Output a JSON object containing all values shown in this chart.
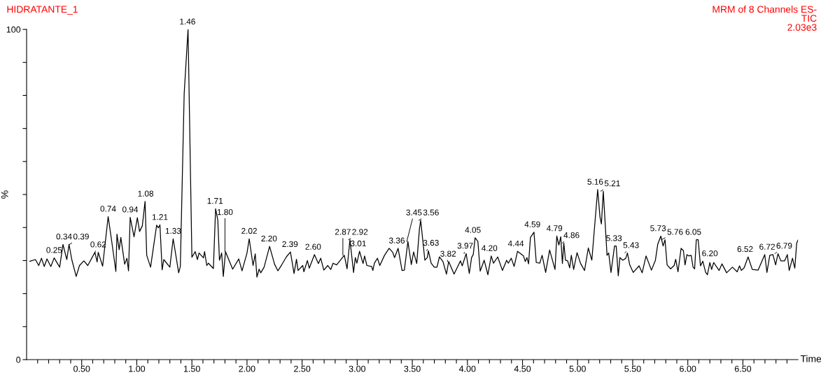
{
  "chart_data": {
    "type": "line",
    "title": "HIDRATANTE_1",
    "subtitle": "MRM of 8 Channels ES-",
    "xlabel": "Time",
    "ylabel": "%",
    "xlim": [
      0,
      7.0
    ],
    "ylim": [
      0,
      100
    ],
    "xticks": [
      {
        "value": 0.1,
        "label": null
      },
      {
        "value": 0.2,
        "label": null
      },
      {
        "value": 0.3,
        "label": null
      },
      {
        "value": 0.4,
        "label": null
      },
      {
        "value": 0.5,
        "label": "0.50"
      },
      {
        "value": 0.6,
        "label": null
      },
      {
        "value": 0.7,
        "label": null
      },
      {
        "value": 0.8,
        "label": null
      },
      {
        "value": 0.9,
        "label": null
      },
      {
        "value": 1.0,
        "label": "1.00"
      },
      {
        "value": 1.1,
        "label": null
      },
      {
        "value": 1.2,
        "label": null
      },
      {
        "value": 1.3,
        "label": null
      },
      {
        "value": 1.4,
        "label": null
      },
      {
        "value": 1.5,
        "label": "1.50"
      },
      {
        "value": 1.6,
        "label": null
      },
      {
        "value": 1.7,
        "label": null
      },
      {
        "value": 1.8,
        "label": null
      },
      {
        "value": 1.9,
        "label": null
      },
      {
        "value": 2.0,
        "label": "2.00"
      },
      {
        "value": 2.1,
        "label": null
      },
      {
        "value": 2.2,
        "label": null
      },
      {
        "value": 2.3,
        "label": null
      },
      {
        "value": 2.4,
        "label": null
      },
      {
        "value": 2.5,
        "label": "2.50"
      },
      {
        "value": 2.6,
        "label": null
      },
      {
        "value": 2.7,
        "label": null
      },
      {
        "value": 2.8,
        "label": null
      },
      {
        "value": 2.9,
        "label": null
      },
      {
        "value": 3.0,
        "label": "3.00"
      },
      {
        "value": 3.1,
        "label": null
      },
      {
        "value": 3.2,
        "label": null
      },
      {
        "value": 3.3,
        "label": null
      },
      {
        "value": 3.4,
        "label": null
      },
      {
        "value": 3.5,
        "label": "3.50"
      },
      {
        "value": 3.6,
        "label": null
      },
      {
        "value": 3.7,
        "label": null
      },
      {
        "value": 3.8,
        "label": null
      },
      {
        "value": 3.9,
        "label": null
      },
      {
        "value": 4.0,
        "label": "4.00"
      },
      {
        "value": 4.1,
        "label": null
      },
      {
        "value": 4.2,
        "label": null
      },
      {
        "value": 4.3,
        "label": null
      },
      {
        "value": 4.4,
        "label": null
      },
      {
        "value": 4.5,
        "label": "4.50"
      },
      {
        "value": 4.6,
        "label": null
      },
      {
        "value": 4.7,
        "label": null
      },
      {
        "value": 4.8,
        "label": null
      },
      {
        "value": 4.9,
        "label": null
      },
      {
        "value": 5.0,
        "label": "5.00"
      },
      {
        "value": 5.1,
        "label": null
      },
      {
        "value": 5.2,
        "label": null
      },
      {
        "value": 5.3,
        "label": null
      },
      {
        "value": 5.4,
        "label": null
      },
      {
        "value": 5.5,
        "label": "5.50"
      },
      {
        "value": 5.6,
        "label": null
      },
      {
        "value": 5.7,
        "label": null
      },
      {
        "value": 5.8,
        "label": null
      },
      {
        "value": 5.9,
        "label": null
      },
      {
        "value": 6.0,
        "label": "6.00"
      },
      {
        "value": 6.1,
        "label": null
      },
      {
        "value": 6.2,
        "label": null
      },
      {
        "value": 6.3,
        "label": null
      },
      {
        "value": 6.4,
        "label": null
      },
      {
        "value": 6.5,
        "label": "6.50"
      },
      {
        "value": 6.6,
        "label": null
      },
      {
        "value": 6.7,
        "label": null
      },
      {
        "value": 6.8,
        "label": null
      },
      {
        "value": 6.9,
        "label": null
      }
    ],
    "yticks": [
      0,
      {
        "value": 10,
        "label": null
      },
      {
        "value": 20,
        "label": null
      },
      {
        "value": 30,
        "label": null
      },
      {
        "value": 40,
        "label": null
      },
      {
        "value": 50,
        "label": null
      },
      {
        "value": 60,
        "label": null
      },
      {
        "value": 70,
        "label": null
      },
      {
        "value": 80,
        "label": null
      },
      {
        "value": 90,
        "label": null
      },
      100
    ],
    "grid": false,
    "marker": "none",
    "line_style": "solid",
    "series": [
      {
        "color": "#000000",
        "x": [
          0.03,
          0.08,
          0.11,
          0.135,
          0.16,
          0.185,
          0.22,
          0.25,
          0.3,
          0.33,
          0.365,
          0.385,
          0.41,
          0.45,
          0.48,
          0.52,
          0.555,
          0.62,
          0.64,
          0.65,
          0.69,
          0.74,
          0.77,
          0.81,
          0.82,
          0.84,
          0.855,
          0.89,
          0.91,
          0.925,
          0.94,
          0.975,
          1.005,
          1.025,
          1.05,
          1.075,
          1.09,
          1.125,
          1.18,
          1.195,
          1.21,
          1.23,
          1.245,
          1.3,
          1.33,
          1.38,
          1.395,
          1.43,
          1.465,
          1.5,
          1.53,
          1.55,
          1.565,
          1.605,
          1.615,
          1.635,
          1.65,
          1.695,
          1.715,
          1.735,
          1.75,
          1.77,
          1.785,
          1.805,
          1.87,
          1.925,
          1.955,
          2.0,
          2.02,
          2.055,
          2.075,
          2.09,
          2.11,
          2.125,
          2.155,
          2.205,
          2.25,
          2.28,
          2.315,
          2.357,
          2.394,
          2.427,
          2.449,
          2.463,
          2.506,
          2.516,
          2.548,
          2.565,
          2.612,
          2.648,
          2.669,
          2.697,
          2.733,
          2.76,
          2.781,
          2.813,
          2.883,
          2.908,
          2.934,
          2.967,
          2.983,
          2.997,
          3.021,
          3.053,
          3.067,
          3.088,
          3.131,
          3.142,
          3.156,
          3.184,
          3.205,
          3.248,
          3.29,
          3.322,
          3.339,
          3.371,
          3.407,
          3.428,
          3.46,
          3.491,
          3.512,
          3.54,
          3.565,
          3.576,
          3.614,
          3.636,
          3.646,
          3.671,
          3.699,
          3.724,
          3.746,
          3.778,
          3.81,
          3.83,
          3.879,
          3.915,
          3.937,
          3.953,
          3.989,
          4.017,
          4.038,
          4.053,
          4.07,
          4.095,
          4.116,
          4.152,
          4.186,
          4.216,
          4.237,
          4.275,
          4.318,
          4.356,
          4.371,
          4.398,
          4.424,
          4.455,
          4.509,
          4.525,
          4.54,
          4.555,
          4.572,
          4.604,
          4.625,
          4.657,
          4.678,
          4.71,
          4.746,
          4.795,
          4.811,
          4.83,
          4.847,
          4.862,
          4.875,
          4.89,
          4.91,
          4.928,
          4.943,
          4.964,
          4.995,
          5.027,
          5.063,
          5.097,
          5.129,
          5.182,
          5.203,
          5.216,
          5.233,
          5.267,
          5.282,
          5.303,
          5.335,
          5.35,
          5.369,
          5.384,
          5.41,
          5.437,
          5.452,
          5.473,
          5.505,
          5.558,
          5.586,
          5.621,
          5.67,
          5.706,
          5.727,
          5.755,
          5.776,
          5.793,
          5.812,
          5.844,
          5.876,
          5.89,
          5.911,
          5.939,
          5.96,
          5.975,
          5.992,
          6.009,
          6.03,
          6.048,
          6.062,
          6.077,
          6.094,
          6.115,
          6.136,
          6.162,
          6.178,
          6.2,
          6.216,
          6.235,
          6.284,
          6.31,
          6.352,
          6.405,
          6.448,
          6.469,
          6.486,
          6.511,
          6.547,
          6.585,
          6.638,
          6.698,
          6.718,
          6.744,
          6.772,
          6.797,
          6.818,
          6.844,
          6.878,
          6.903,
          6.92,
          6.95,
          6.971,
          6.988,
          7.0
        ],
        "values": [
          29.8,
          30.3,
          28.5,
          30.7,
          28.2,
          30.5,
          28.2,
          30.8,
          28.0,
          34.9,
          30.3,
          34.9,
          30.3,
          25.2,
          28.5,
          29.9,
          28.5,
          32.5,
          29.6,
          32.5,
          28.3,
          43.3,
          36.4,
          26.7,
          38.0,
          33.3,
          37.0,
          28.9,
          30.7,
          26.9,
          43.1,
          37.2,
          43.0,
          38.8,
          40.5,
          47.9,
          31.6,
          28.0,
          40.7,
          39.9,
          40.8,
          27.2,
          30.3,
          28.0,
          36.6,
          26.3,
          28.2,
          80.6,
          100,
          31.0,
          32.7,
          30.3,
          32.3,
          30.8,
          32.7,
          28.5,
          29.2,
          27.6,
          45.7,
          42.3,
          30.1,
          32.3,
          25.2,
          32.7,
          27.4,
          30.5,
          26.9,
          32.3,
          36.6,
          28.5,
          32.0,
          25.0,
          27.4,
          26.3,
          28.0,
          34.3,
          28.9,
          26.9,
          28.7,
          31.1,
          32.6,
          26.1,
          30.4,
          27.0,
          28.5,
          26.6,
          30.0,
          27.7,
          31.8,
          29.1,
          30.7,
          27.1,
          28.5,
          27.3,
          29.2,
          28.7,
          31.6,
          27.5,
          36.3,
          26.4,
          30.9,
          29.2,
          32.8,
          29.1,
          31.4,
          28.5,
          28.2,
          27.0,
          29.2,
          30.7,
          28.5,
          31.6,
          33.7,
          32.5,
          30.9,
          33.7,
          27.0,
          27.1,
          35.8,
          28.8,
          32.6,
          29.1,
          39.7,
          42.2,
          30.1,
          30.9,
          33.0,
          29.2,
          28.0,
          28.0,
          31.1,
          29.7,
          25.9,
          29.7,
          25.9,
          28.4,
          29.9,
          28.4,
          32.1,
          26.1,
          30.9,
          31.8,
          36.9,
          35.8,
          26.8,
          30.1,
          25.7,
          31.4,
          29.2,
          31.1,
          27.0,
          30.1,
          29.2,
          30.7,
          28.2,
          32.8,
          31.4,
          29.7,
          30.9,
          29.0,
          37.0,
          38.6,
          29.4,
          29.2,
          31.6,
          26.4,
          33.2,
          27.3,
          37.4,
          34.7,
          37.2,
          29.1,
          35.3,
          30.1,
          29.9,
          27.8,
          31.6,
          27.3,
          32.4,
          29.1,
          27.0,
          33.8,
          30.1,
          51.5,
          43.2,
          41.1,
          51.0,
          31.6,
          32.3,
          26.4,
          34.4,
          34.4,
          25.4,
          30.9,
          30.1,
          30.7,
          32.3,
          28.7,
          26.4,
          28.4,
          26.3,
          31.4,
          27.1,
          30.1,
          34.9,
          37.4,
          34.4,
          36.3,
          28.7,
          27.5,
          28.5,
          30.4,
          26.6,
          33.7,
          33.0,
          28.7,
          31.8,
          31.4,
          31.6,
          28.0,
          27.5,
          36.3,
          36.3,
          28.4,
          29.8,
          26.4,
          25.7,
          29.4,
          27.3,
          29.4,
          27.0,
          29.0,
          26.3,
          28.0,
          26.6,
          28.4,
          27.0,
          27.8,
          31.1,
          27.3,
          27.1,
          31.8,
          26.4,
          31.6,
          31.8,
          28.7,
          32.1,
          29.9,
          29.9,
          31.8,
          27.0,
          30.7,
          27.7,
          35.3,
          36.2
        ]
      }
    ],
    "annotations": [
      "TIC",
      "2.03e3",
      {
        "text": "0.25",
        "x": 0.25,
        "y": 30.8
      },
      {
        "text": "0.34",
        "x": 0.34,
        "y": 34.9
      },
      {
        "text": "0.39",
        "x": 0.39,
        "y": 34.9
      },
      {
        "text": "0.62",
        "x": 0.62,
        "y": 32.5
      },
      {
        "text": "0.74",
        "x": 0.74,
        "y": 43.3
      },
      {
        "text": "0.94",
        "x": 0.94,
        "y": 43.1
      },
      {
        "text": "1.08",
        "x": 1.08,
        "y": 47.9
      },
      {
        "text": "1.21",
        "x": 1.21,
        "y": 40.8
      },
      {
        "text": "1.33",
        "x": 1.33,
        "y": 36.6
      },
      {
        "text": "1.46",
        "x": 1.46,
        "y": 100
      },
      {
        "text": "1.71",
        "x": 1.71,
        "y": 45.7
      },
      {
        "text": "1.80",
        "x": 1.8,
        "y": 32.7
      },
      {
        "text": "2.02",
        "x": 2.02,
        "y": 36.6
      },
      {
        "text": "2.20",
        "x": 2.2,
        "y": 34.3
      },
      {
        "text": "2.39",
        "x": 2.39,
        "y": 32.6
      },
      {
        "text": "2.60",
        "x": 2.6,
        "y": 31.8
      },
      {
        "text": "2.87",
        "x": 2.87,
        "y": 31.6
      },
      {
        "text": "2.92",
        "x": 2.92,
        "y": 36.3
      },
      {
        "text": "3.01",
        "x": 3.01,
        "y": 32.8
      },
      {
        "text": "3.36",
        "x": 3.36,
        "y": 33.7
      },
      {
        "text": "3.45",
        "x": 3.45,
        "y": 35.8
      },
      {
        "text": "3.56",
        "x": 3.56,
        "y": 42.2
      },
      {
        "text": "3.63",
        "x": 3.63,
        "y": 33.0
      },
      {
        "text": "3.82",
        "x": 3.82,
        "y": 29.7
      },
      {
        "text": "3.97",
        "x": 3.97,
        "y": 32.1
      },
      {
        "text": "4.05",
        "x": 4.05,
        "y": 36.9
      },
      {
        "text": "4.20",
        "x": 4.2,
        "y": 31.4
      },
      {
        "text": "4.44",
        "x": 4.44,
        "y": 32.8
      },
      {
        "text": "4.59",
        "x": 4.59,
        "y": 38.6
      },
      {
        "text": "4.79",
        "x": 4.79,
        "y": 37.4
      },
      {
        "text": "4.86",
        "x": 4.86,
        "y": 35.3
      },
      {
        "text": "5.16",
        "x": 5.16,
        "y": 51.5
      },
      {
        "text": "5.21",
        "x": 5.21,
        "y": 51.0
      },
      {
        "text": "5.33",
        "x": 5.33,
        "y": 34.4
      },
      {
        "text": "5.43",
        "x": 5.43,
        "y": 32.3
      },
      {
        "text": "5.73",
        "x": 5.73,
        "y": 37.4
      },
      {
        "text": "5.76",
        "x": 5.76,
        "y": 36.3
      },
      {
        "text": "6.05",
        "x": 6.05,
        "y": 36.3
      },
      {
        "text": "6.20",
        "x": 6.2,
        "y": 29.4
      },
      {
        "text": "6.52",
        "x": 6.52,
        "y": 31.1
      },
      {
        "text": "6.72",
        "x": 6.72,
        "y": 31.6
      },
      {
        "text": "6.79",
        "x": 6.79,
        "y": 32.1
      }
    ]
  }
}
